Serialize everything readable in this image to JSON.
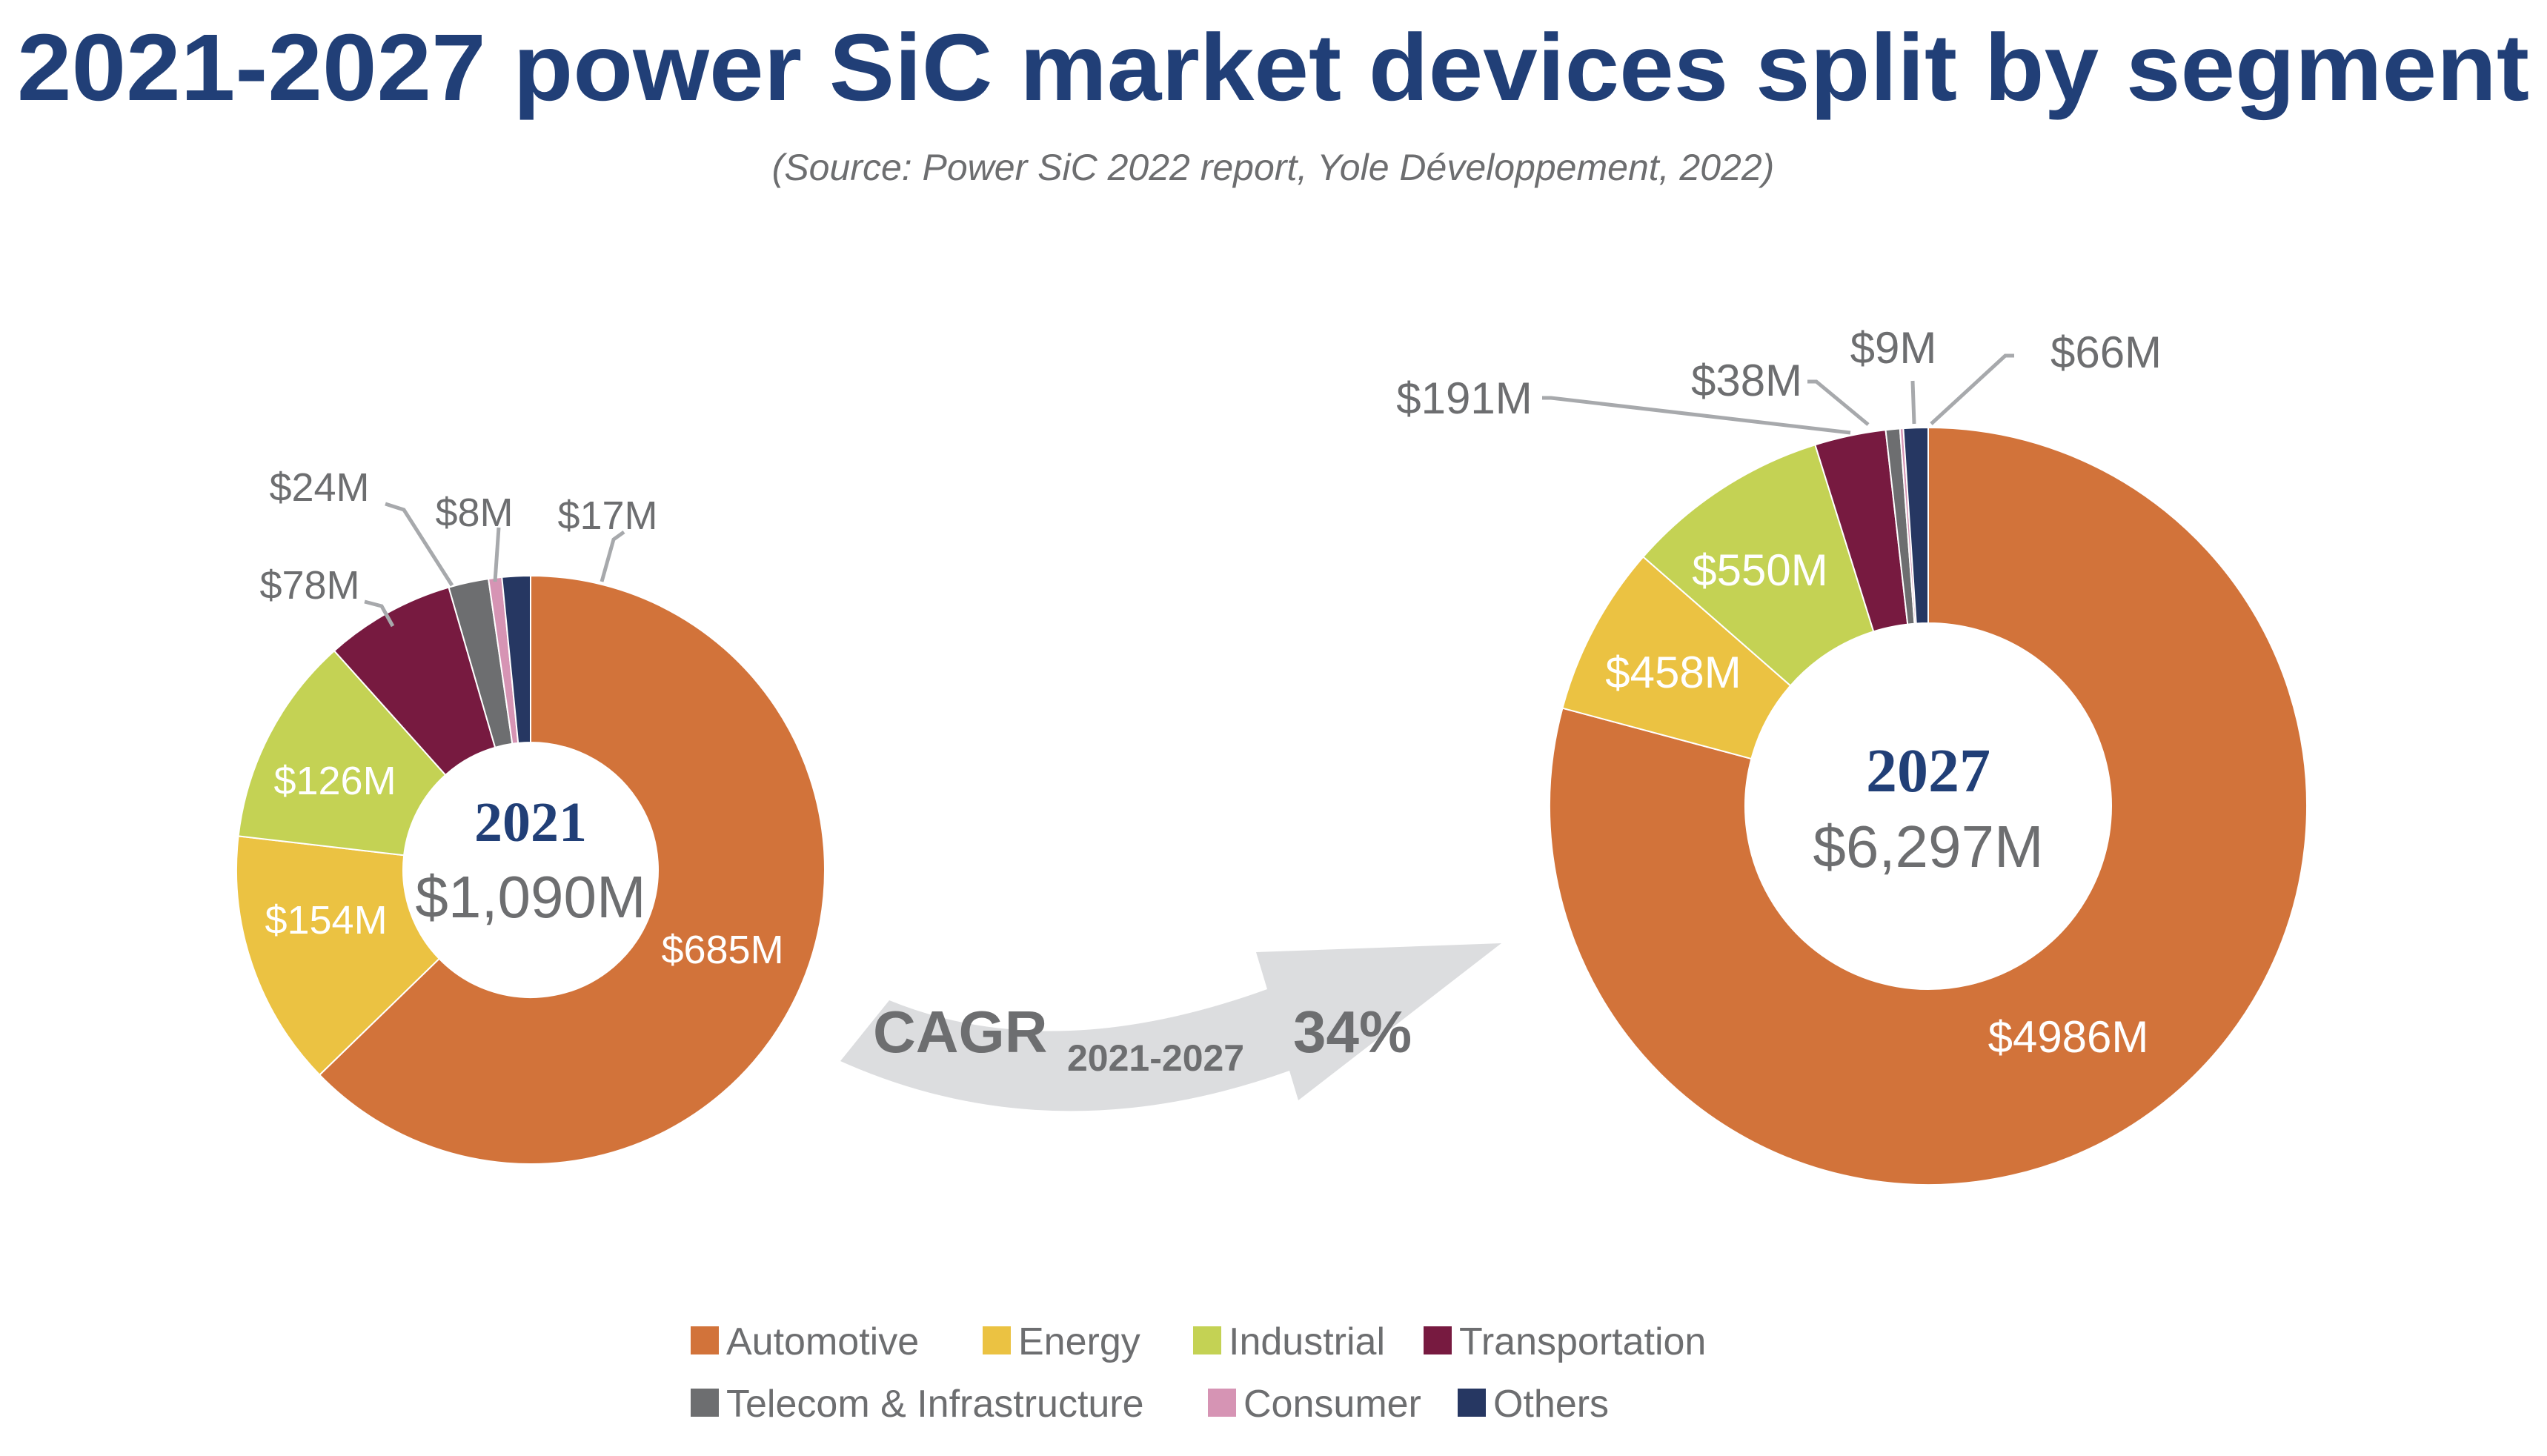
{
  "chart_data": [
    {
      "type": "pie",
      "variant": "donut",
      "title": "2021-2027 power SiC market devices split by segment",
      "subtitle": "(Source: Power SiC 2022 report, Yole Développement, 2022)",
      "center_label": "2021",
      "center_value": "$1,090M",
      "categories": [
        "Automotive",
        "Energy",
        "Industrial",
        "Transportation",
        "Telecom & Infrastructure",
        "Consumer",
        "Others"
      ],
      "values": [
        685,
        154,
        126,
        78,
        24,
        8,
        17
      ],
      "data_labels": [
        "$685M",
        "$154M",
        "$126M",
        "$78M",
        "$24M",
        "$8M",
        "$17M"
      ],
      "unit": "$M"
    },
    {
      "type": "pie",
      "variant": "donut",
      "center_label": "2027",
      "center_value": "$6,297M",
      "categories": [
        "Automotive",
        "Energy",
        "Industrial",
        "Transportation",
        "Telecom & Infrastructure",
        "Consumer",
        "Others"
      ],
      "values": [
        4986,
        458,
        550,
        191,
        38,
        9,
        66
      ],
      "data_labels": [
        "$4986M",
        "$458M",
        "$550M",
        "$191M",
        "$38M",
        "$9M",
        "$66M"
      ],
      "unit": "$M"
    }
  ],
  "header": {
    "title": "2021-2027 power SiC market devices split by segment",
    "subtitle": "(Source: Power SiC 2022 report, Yole Développement, 2022)"
  },
  "cagr": {
    "label": "CAGR",
    "period": "2021-2027",
    "value": "34%"
  },
  "legend": {
    "placement": "bottom",
    "items": [
      {
        "label": "Automotive",
        "color": "#d2733a"
      },
      {
        "label": "Energy",
        "color": "#ebc242"
      },
      {
        "label": "Industrial",
        "color": "#c4d254"
      },
      {
        "label": "Transportation",
        "color": "#771a40"
      },
      {
        "label": "Telecom & Infrastructure",
        "color": "#6d6e70"
      },
      {
        "label": "Consumer",
        "color": "#d694b4"
      },
      {
        "label": "Others",
        "color": "#263762"
      }
    ]
  },
  "colors": {
    "title": "#213f77",
    "text": "#6d6e70",
    "arrow": "#dcdddf"
  }
}
